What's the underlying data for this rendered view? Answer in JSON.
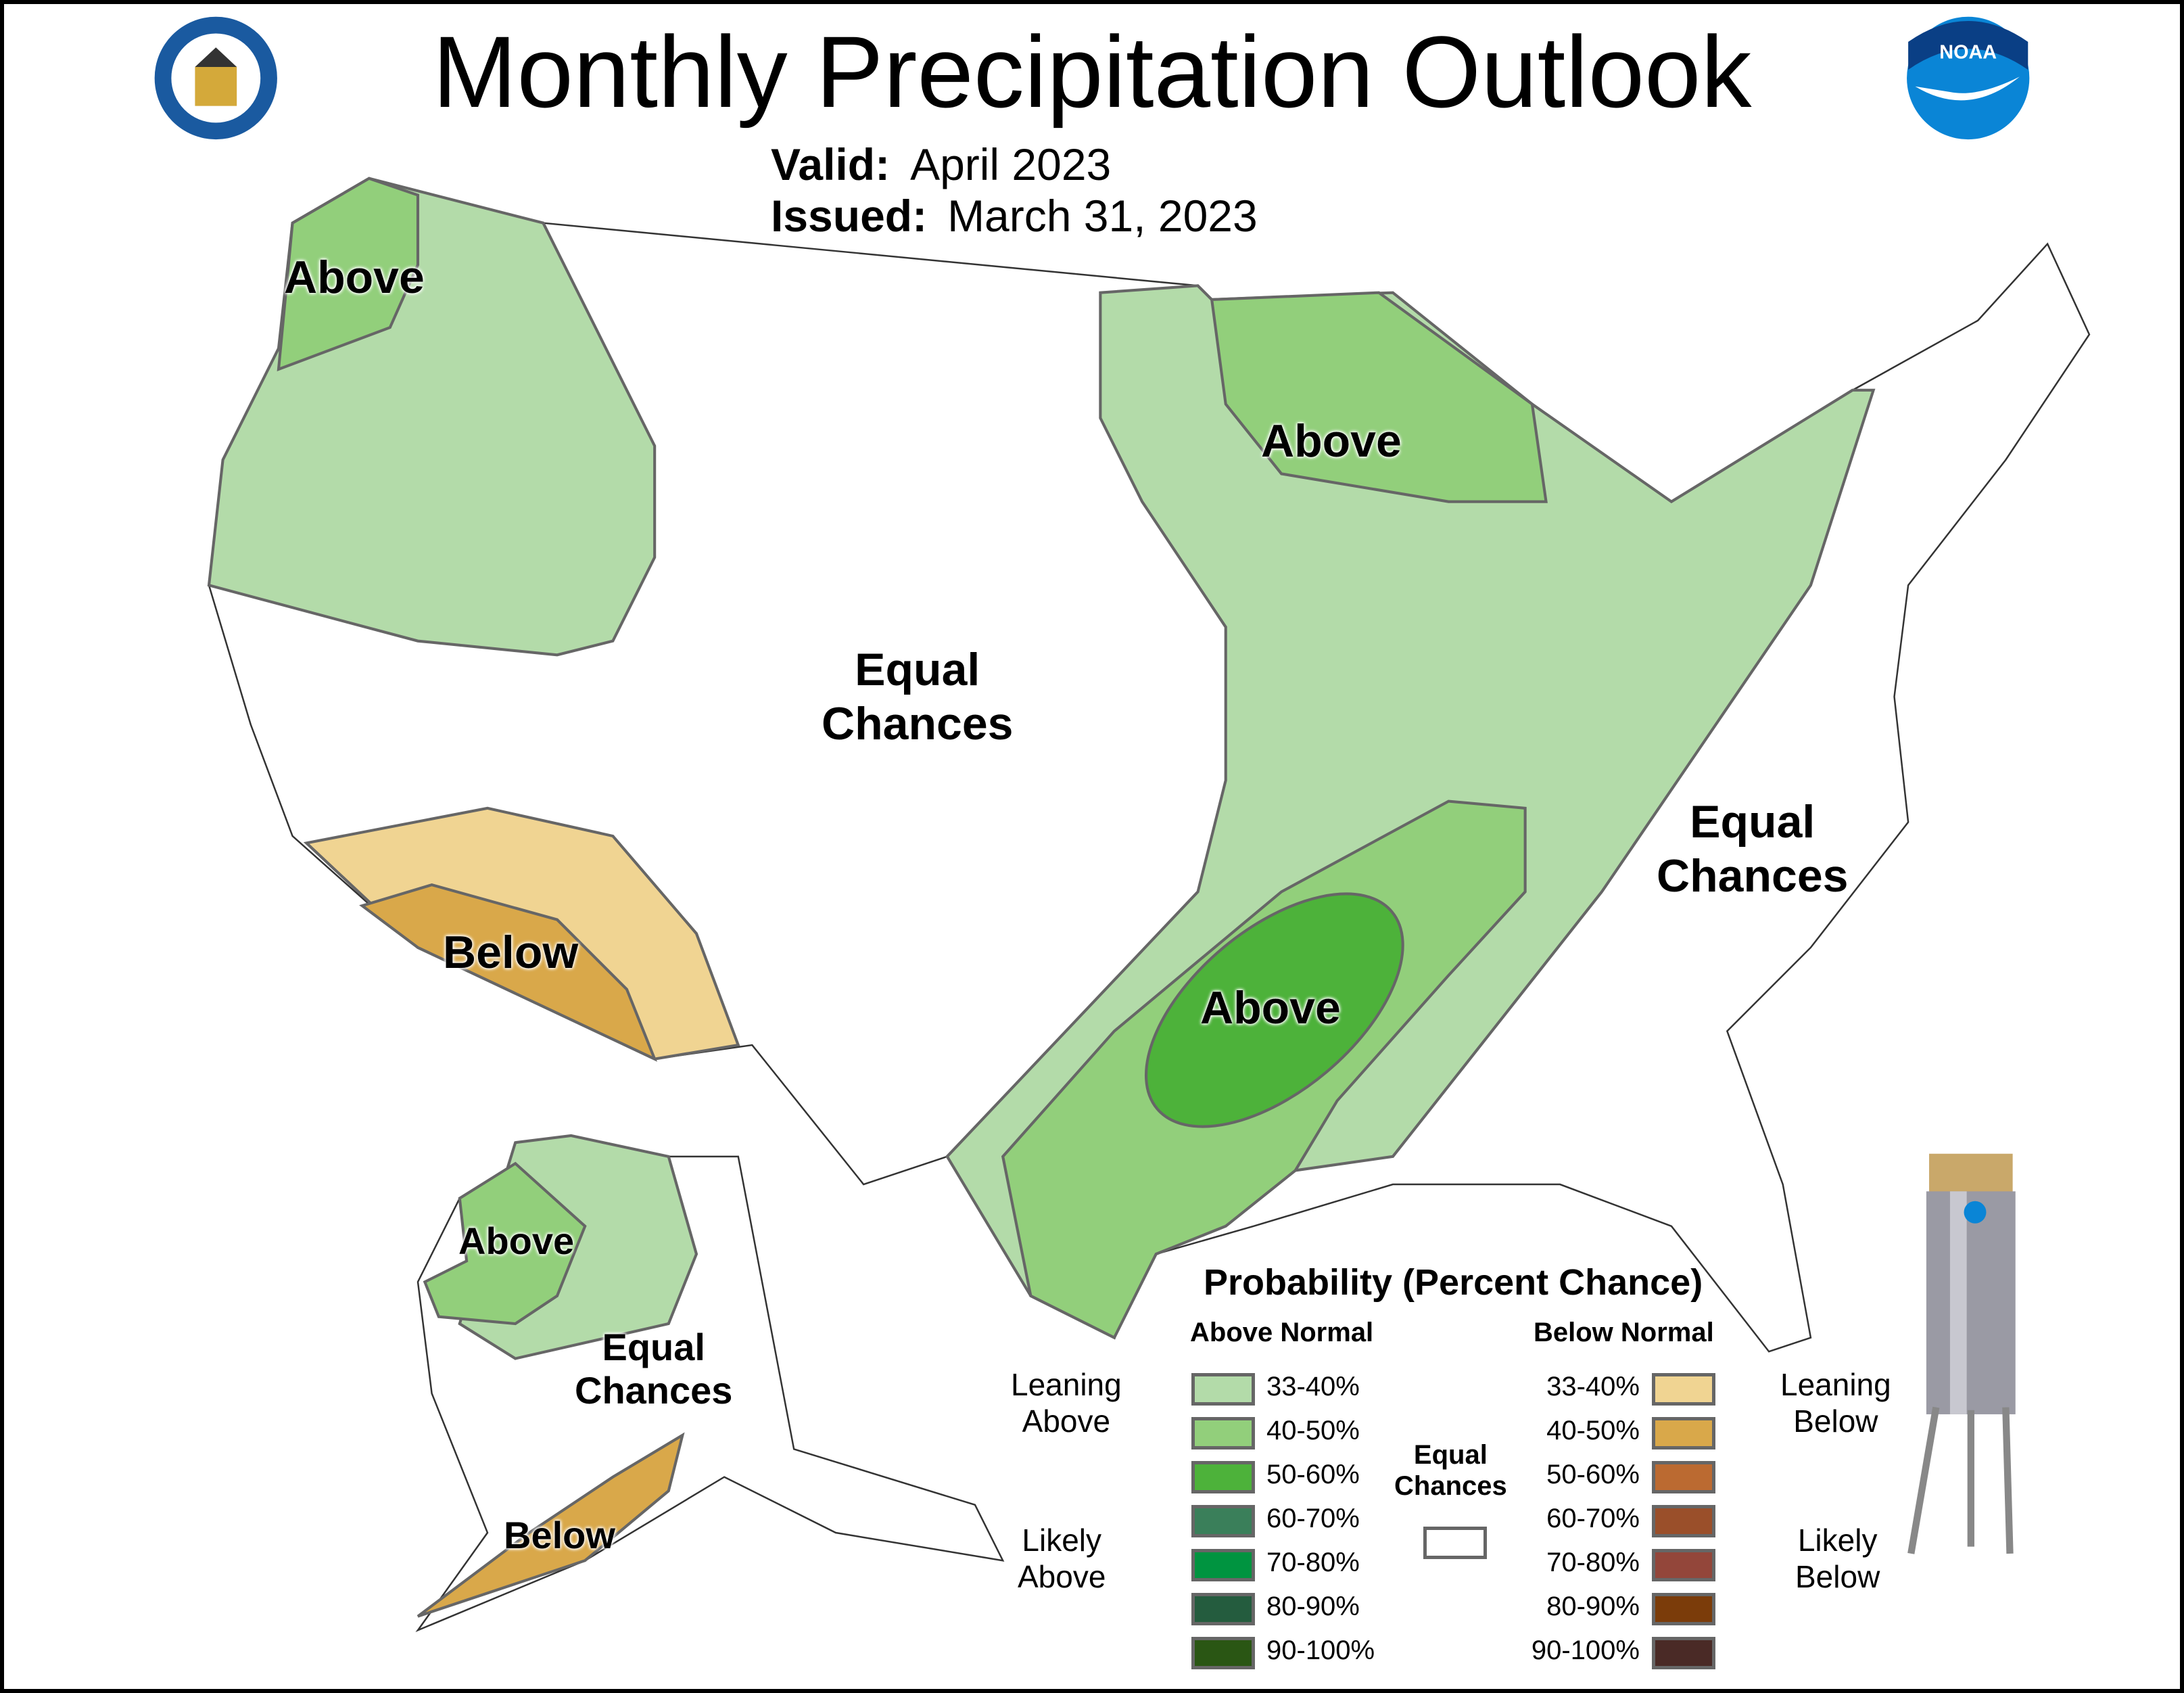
{
  "header": {
    "title": "Monthly Precipitation Outlook",
    "valid_label": "Valid:",
    "valid_value": "April 2023",
    "issued_label": "Issued:",
    "issued_value": "March 31, 2023"
  },
  "logos": {
    "left": "United States of America Department of Commerce seal",
    "right": "NOAA"
  },
  "map_labels": {
    "nw_above": "Above",
    "midwest_above": "Above",
    "south_above": "Above",
    "sw_below": "Below",
    "center_ec_1": "Equal",
    "center_ec_2": "Chances",
    "east_ec_1": "Equal",
    "east_ec_2": "Chances",
    "ak_above": "Above",
    "ak_ec_1": "Equal",
    "ak_ec_2": "Chances",
    "ak_below": "Below"
  },
  "legend": {
    "title": "Probability (Percent Chance)",
    "above_header": "Above Normal",
    "below_header": "Below Normal",
    "leaning_above_1": "Leaning",
    "leaning_above_2": "Above",
    "likely_above_1": "Likely",
    "likely_above_2": "Above",
    "leaning_below_1": "Leaning",
    "leaning_below_2": "Below",
    "likely_below_1": "Likely",
    "likely_below_2": "Below",
    "ec_1": "Equal",
    "ec_2": "Chances",
    "above": [
      {
        "range": "33-40%",
        "color": "#b3dba9"
      },
      {
        "range": "40-50%",
        "color": "#92cf7b"
      },
      {
        "range": "50-60%",
        "color": "#4db23a"
      },
      {
        "range": "60-70%",
        "color": "#3a7f5a"
      },
      {
        "range": "70-80%",
        "color": "#009440"
      },
      {
        "range": "80-90%",
        "color": "#245c3e"
      },
      {
        "range": "90-100%",
        "color": "#2a5614"
      }
    ],
    "below": [
      {
        "range": "33-40%",
        "color": "#f0d492"
      },
      {
        "range": "40-50%",
        "color": "#d9a84a"
      },
      {
        "range": "50-60%",
        "color": "#bb6a31"
      },
      {
        "range": "60-70%",
        "color": "#9a4f2a"
      },
      {
        "range": "70-80%",
        "color": "#93463a"
      },
      {
        "range": "80-90%",
        "color": "#7b3c0a"
      },
      {
        "range": "90-100%",
        "color": "#4a2a26"
      }
    ],
    "ec_color": "#ffffff"
  }
}
